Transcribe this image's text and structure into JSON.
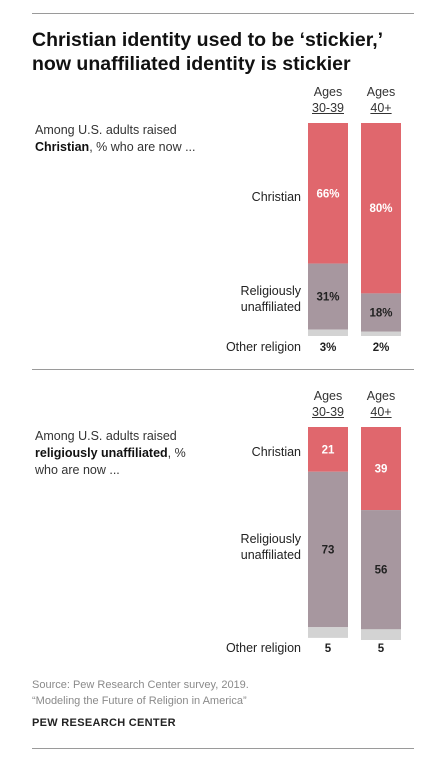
{
  "title": "Christian identity used to be ‘stickier,’ now unaffiliated identity is stickier",
  "colors": {
    "christian": "#e0676d",
    "unaffiliated": "#a7979f",
    "other": "#d3d3d3"
  },
  "chart_data": [
    {
      "type": "bar",
      "stacked": true,
      "intro": {
        "pre": "Among U.S. adults raised",
        "bold": "Christian",
        "post": ", % who are now ..."
      },
      "categories": [
        {
          "line1": "Ages",
          "line2": "30-39"
        },
        {
          "line1": "Ages",
          "line2": "40+"
        }
      ],
      "series": [
        {
          "name": "Christian",
          "values": [
            66,
            80
          ],
          "labels": [
            "66%",
            "80%"
          ]
        },
        {
          "name": "Religiously unaffiliated",
          "values": [
            31,
            18
          ],
          "labels": [
            "31%",
            "18%"
          ]
        },
        {
          "name": "Other religion",
          "values": [
            3,
            2
          ],
          "labels": [
            "3%",
            "2%"
          ]
        }
      ],
      "ylim": [
        0,
        100
      ]
    },
    {
      "type": "bar",
      "stacked": true,
      "intro": {
        "pre": "Among U.S. adults raised",
        "bold": "religiously unaffiliated",
        "post": ", % who are now ..."
      },
      "categories": [
        {
          "line1": "Ages",
          "line2": "30-39"
        },
        {
          "line1": "Ages",
          "line2": "40+"
        }
      ],
      "series": [
        {
          "name": "Christian",
          "values": [
            21,
            39
          ],
          "labels": [
            "21",
            "39"
          ]
        },
        {
          "name": "Religiously unaffiliated",
          "values": [
            73,
            56
          ],
          "labels": [
            "73",
            "56"
          ]
        },
        {
          "name": "Other religion",
          "values": [
            5,
            5
          ],
          "labels": [
            "5",
            "5"
          ]
        }
      ],
      "ylim": [
        0,
        100
      ]
    }
  ],
  "row_labels": {
    "christian": "Christian",
    "unaffiliated_1": "Religiously",
    "unaffiliated_2": "unaffiliated",
    "other": "Other religion"
  },
  "source": {
    "line1": "Source: Pew Research Center survey, 2019.",
    "line2": "“Modeling the Future of Religion in America”"
  },
  "org": "PEW RESEARCH CENTER"
}
